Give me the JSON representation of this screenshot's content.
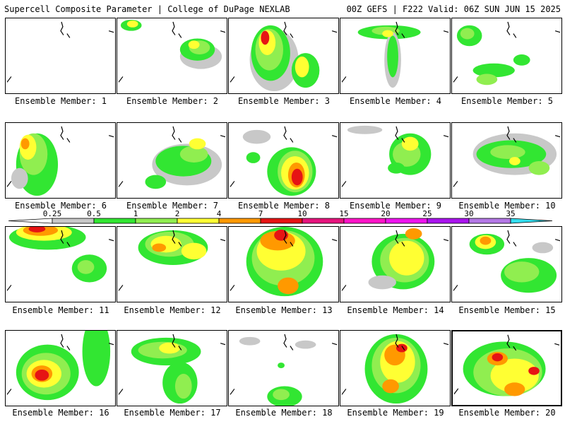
{
  "header": {
    "left_title": "Supercell Composite Parameter | College of DuPage NEXLAB",
    "right_title": "00Z GEFS | F222 Valid: 06Z SUN JUN 15 2025"
  },
  "label_prefix": "Ensemble Member:",
  "members": [
    {
      "number": "1",
      "label": "Ensemble Member: 1"
    },
    {
      "number": "2",
      "label": "Ensemble Member: 2"
    },
    {
      "number": "3",
      "label": "Ensemble Member: 3"
    },
    {
      "number": "4",
      "label": "Ensemble Member: 4"
    },
    {
      "number": "5",
      "label": "Ensemble Member: 5"
    },
    {
      "number": "6",
      "label": "Ensemble Member: 6"
    },
    {
      "number": "7",
      "label": "Ensemble Member: 7"
    },
    {
      "number": "8",
      "label": "Ensemble Member: 8"
    },
    {
      "number": "9",
      "label": "Ensemble Member: 9"
    },
    {
      "number": "10",
      "label": "Ensemble Member: 10"
    },
    {
      "number": "11",
      "label": "Ensemble Member: 11"
    },
    {
      "number": "12",
      "label": "Ensemble Member: 12"
    },
    {
      "number": "13",
      "label": "Ensemble Member: 13"
    },
    {
      "number": "14",
      "label": "Ensemble Member: 14"
    },
    {
      "number": "15",
      "label": "Ensemble Member: 15"
    },
    {
      "number": "16",
      "label": "Ensemble Member: 16"
    },
    {
      "number": "17",
      "label": "Ensemble Member: 17"
    },
    {
      "number": "18",
      "label": "Ensemble Member: 18"
    },
    {
      "number": "19",
      "label": "Ensemble Member: 19"
    },
    {
      "number": "20",
      "label": "Ensemble Member: 20"
    }
  ],
  "selected_member": "20",
  "colorbar": {
    "ticks": [
      "0.25",
      "0.5",
      "1",
      "2",
      "4",
      "7",
      "10",
      "15",
      "20",
      "25",
      "30",
      "35"
    ],
    "colors": [
      "#c8c8c8",
      "#32e632",
      "#90ee50",
      "#ffff33",
      "#ff9900",
      "#e61414",
      "#e6147d",
      "#ff14c8",
      "#ee14ee",
      "#aa14ee",
      "#b478e6",
      "#33ddee"
    ]
  }
}
